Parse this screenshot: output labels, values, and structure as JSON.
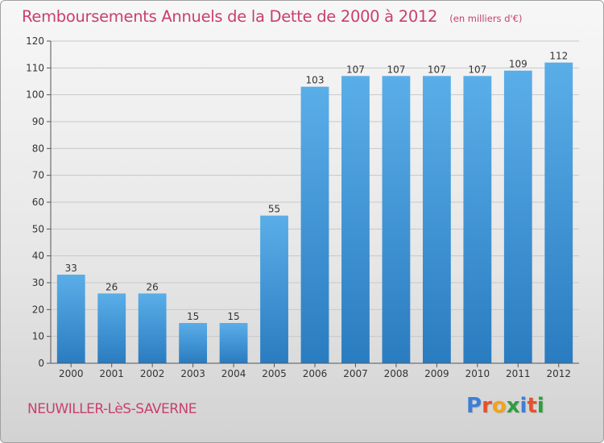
{
  "title": "Remboursements Annuels de la Dette de 2000 à 2012",
  "unit_note": "(en milliers d'€)",
  "commune": "NEUWILLER-LèS-SAVERNE",
  "logo": {
    "text": "Proxiti",
    "letter_colors": [
      "#3d7fd6",
      "#e8502a",
      "#f2a21b",
      "#2d9e3c",
      "#3d7fd6",
      "#e8502a",
      "#2d9e3c"
    ]
  },
  "colors": {
    "title": "#c8406e",
    "bar_top": "#5aaee8",
    "bar_bottom": "#2a7cc0",
    "grid": "#c8c8c8",
    "axis": "#555555"
  },
  "chart_data": {
    "type": "bar",
    "title": "Remboursements Annuels de la Dette de 2000 à 2012",
    "xlabel": "",
    "ylabel": "",
    "categories": [
      "2000",
      "2001",
      "2002",
      "2003",
      "2004",
      "2005",
      "2006",
      "2007",
      "2008",
      "2009",
      "2010",
      "2011",
      "2012"
    ],
    "values": [
      33,
      26,
      26,
      15,
      15,
      55,
      103,
      107,
      107,
      107,
      107,
      109,
      112
    ],
    "data_labels": [
      "33",
      "26",
      "26",
      "15",
      "15",
      "55",
      "103",
      "107",
      "107",
      "107",
      "107",
      "109",
      "112"
    ],
    "ylim": [
      0,
      120
    ],
    "yticks": [
      0,
      10,
      20,
      30,
      40,
      50,
      60,
      70,
      80,
      90,
      100,
      110,
      120
    ],
    "grid": true,
    "legend": "none"
  }
}
